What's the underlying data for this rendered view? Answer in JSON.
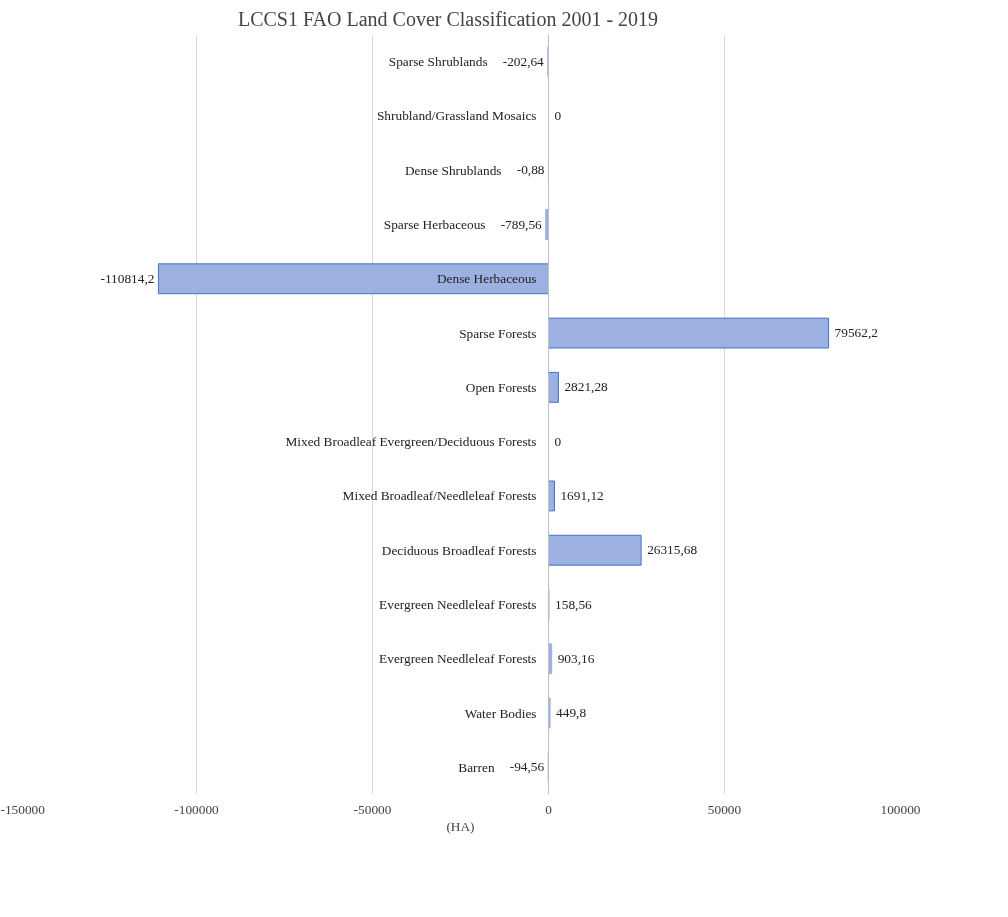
{
  "chart_data": {
    "type": "bar",
    "orientation": "horizontal",
    "title": "LCCS1  FAO  Land  Cover  Classification  2001 - 2019",
    "xlabel": "(HA)",
    "categories": [
      "Sparse Shrublands",
      "Shrubland/Grassland Mosaics",
      "Dense Shrublands",
      "Sparse Herbaceous",
      "Dense Herbaceous",
      "Sparse Forests",
      "Open Forests",
      "Mixed Broadleaf Evergreen/Deciduous Forests",
      "Mixed Broadleaf/Needleleaf Forests",
      "Deciduous Broadleaf Forests",
      "Evergreen Needleleaf Forests",
      "Evergreen Needleleaf Forests",
      "Water Bodies",
      "Barren"
    ],
    "values": [
      -202.64,
      0,
      -0.88,
      -789.56,
      -110814.2,
      79562.2,
      2821.28,
      0,
      1691.12,
      26315.68,
      158.56,
      903.16,
      449.8,
      -94.56
    ],
    "value_labels": [
      "-202,64",
      "0",
      "-0,88",
      "-789,56",
      "-110814,2",
      "79562,2",
      "2821,28",
      "0",
      "1691,12",
      "26315,68",
      "158,56",
      "903,16",
      "449,8",
      "-94,56"
    ],
    "color": "#9cb0e2",
    "xlim": [
      -150000,
      100000
    ],
    "xticks": [
      -150000,
      -100000,
      -50000,
      0,
      50000,
      100000
    ],
    "grid": "x"
  }
}
